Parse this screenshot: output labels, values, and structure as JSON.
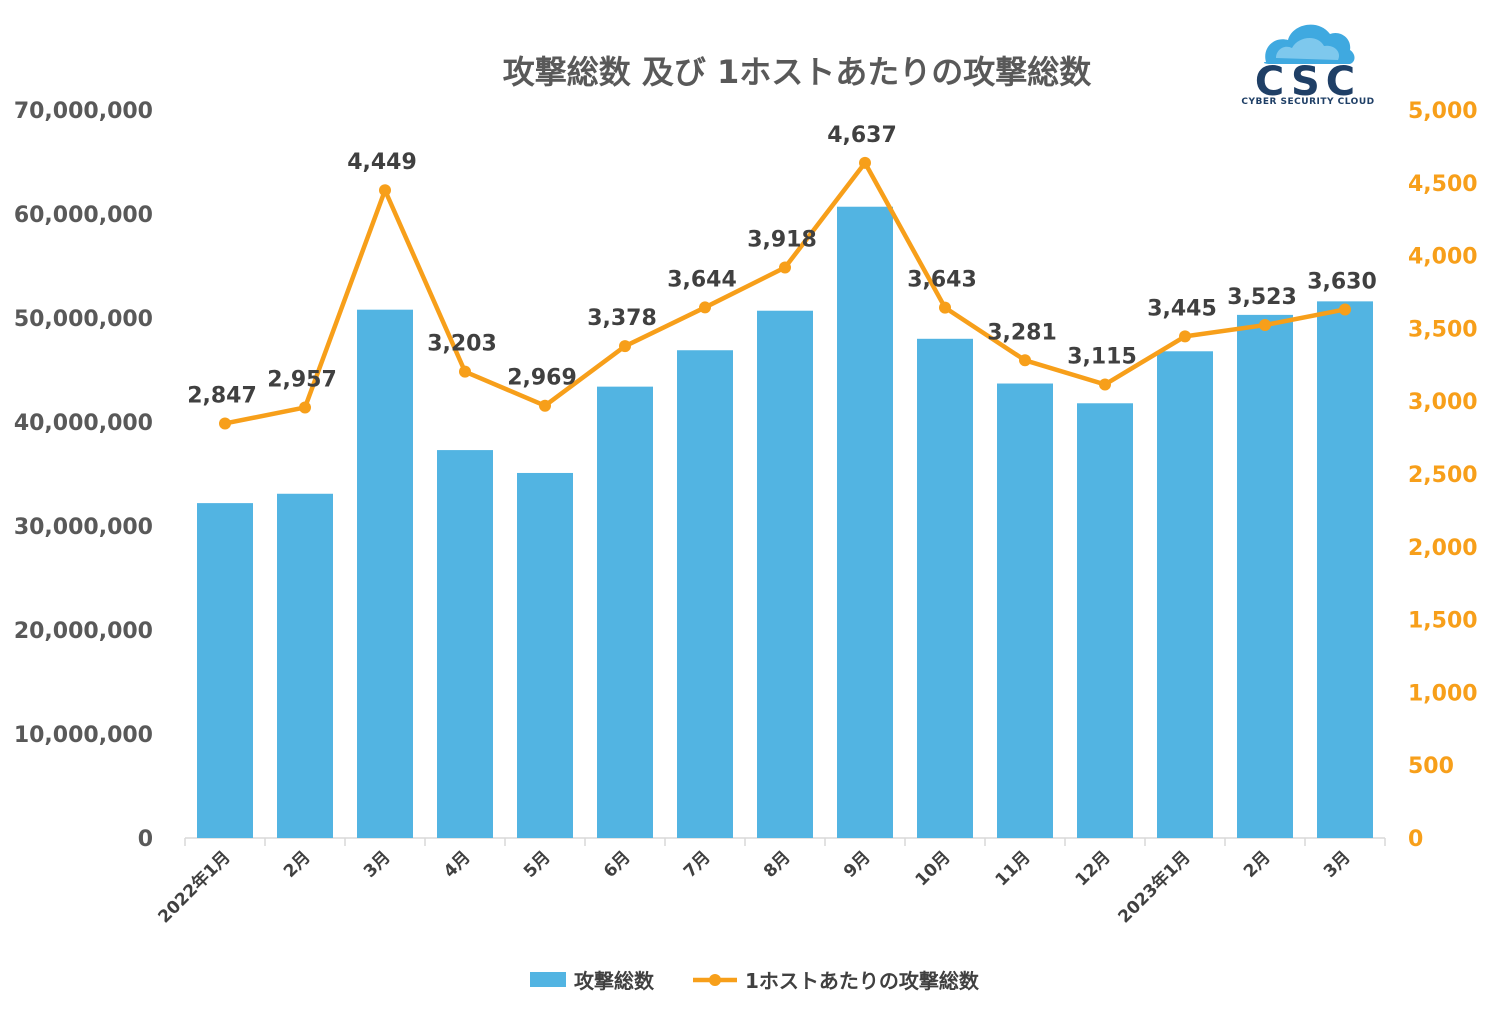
{
  "chart_data": {
    "type": "bar",
    "title": "攻撃総数 及び 1ホストあたりの攻撃総数",
    "categories": [
      "2022年1月",
      "2月",
      "3月",
      "4月",
      "5月",
      "6月",
      "7月",
      "8月",
      "9月",
      "10月",
      "11月",
      "12月",
      "2023年1月",
      "2月",
      "3月"
    ],
    "series": [
      {
        "name": "攻撃総数",
        "type": "bar",
        "axis": "left",
        "color": "#52B4E2",
        "values": [
          32200000,
          33100000,
          50800000,
          37300000,
          35100000,
          43400000,
          46900000,
          50700000,
          60700000,
          48000000,
          43700000,
          41800000,
          46800000,
          50300000,
          51600000
        ]
      },
      {
        "name": "1ホストあたりの攻撃総数",
        "type": "line",
        "axis": "right",
        "color": "#F79F1A",
        "values": [
          2847,
          2957,
          4449,
          3203,
          2969,
          3378,
          3644,
          3918,
          4637,
          3643,
          3281,
          3115,
          3445,
          3523,
          3630
        ],
        "labels": [
          "2,847",
          "2,957",
          "4,449",
          "3,203",
          "2,969",
          "3,378",
          "3,644",
          "3,918",
          "4,637",
          "3,643",
          "3,281",
          "3,115",
          "3,445",
          "3,523",
          "3,630"
        ]
      }
    ],
    "y_left": {
      "min": 0,
      "max": 70000000,
      "ticks": [
        "0",
        "10,000,000",
        "20,000,000",
        "30,000,000",
        "40,000,000",
        "50,000,000",
        "60,000,000",
        "70,000,000"
      ]
    },
    "y_right": {
      "min": 0,
      "max": 5000,
      "ticks": [
        "0",
        "500",
        "1,000",
        "1,500",
        "2,000",
        "2,500",
        "3,000",
        "3,500",
        "4,000",
        "4,500",
        "5,000"
      ]
    },
    "grid": false,
    "legend_position": "bottom"
  },
  "logo": {
    "text": "CSC",
    "subtext": "CYBER SECURITY CLOUD",
    "primary_color": "#1F3F66",
    "cloud_color": "#3FA9E0"
  }
}
